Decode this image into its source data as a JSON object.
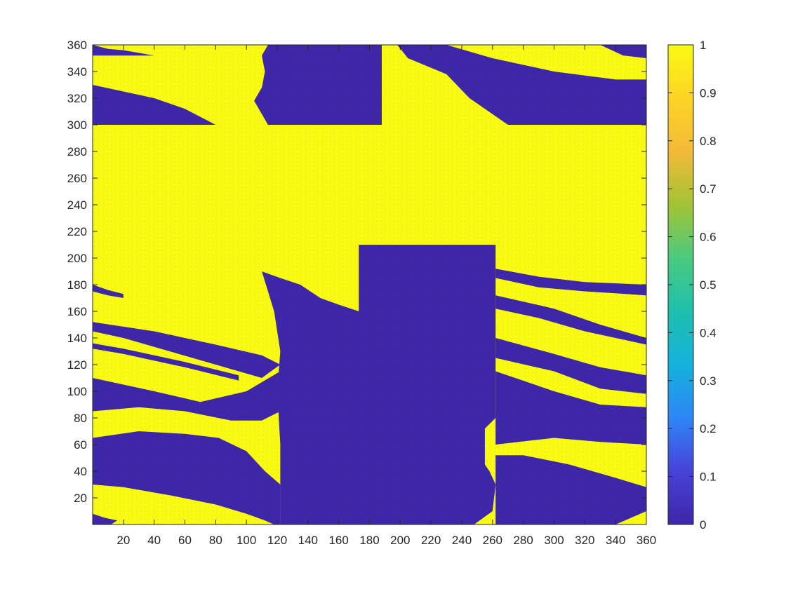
{
  "chart_data": {
    "type": "heatmap",
    "title": "",
    "xlabel": "",
    "ylabel": "",
    "xlim": [
      0,
      360
    ],
    "ylim": [
      0,
      360
    ],
    "grid": false,
    "colormap": "parula",
    "color_limits": [
      0,
      1
    ],
    "colors": {
      "low": "#3D26A8",
      "high": "#F9FA14",
      "parula_stops": [
        "#3E26A8",
        "#4742D8",
        "#2E86F6",
        "#14B2DC",
        "#1DBFAE",
        "#4BCA7F",
        "#A3C335",
        "#F2BA39",
        "#FDD425",
        "#F9FA14"
      ]
    },
    "xticks": [
      20,
      40,
      60,
      80,
      100,
      120,
      140,
      160,
      180,
      200,
      220,
      240,
      260,
      280,
      300,
      320,
      340,
      360
    ],
    "yticks": [
      20,
      40,
      60,
      80,
      100,
      120,
      140,
      160,
      180,
      200,
      220,
      240,
      260,
      280,
      300,
      320,
      340,
      360
    ],
    "colorbar": {
      "ticks": [
        0,
        0.1,
        0.2,
        0.3,
        0.4,
        0.5,
        0.6,
        0.7,
        0.8,
        0.9,
        1
      ],
      "tick_labels": [
        "0",
        "0.1",
        "0.2",
        "0.3",
        "0.4",
        "0.5",
        "0.6",
        "0.7",
        "0.8",
        "0.9",
        "1"
      ]
    },
    "background_value": 1,
    "regions_value_0": [
      [
        [
          0,
          0
        ],
        [
          12,
          0
        ],
        [
          16,
          3
        ],
        [
          8,
          5
        ],
        [
          0,
          8
        ]
      ],
      [
        [
          0,
          30
        ],
        [
          20,
          28
        ],
        [
          50,
          22
        ],
        [
          80,
          15
        ],
        [
          100,
          8
        ],
        [
          112,
          3
        ],
        [
          118,
          0
        ],
        [
          122,
          0
        ],
        [
          122,
          30
        ],
        [
          112,
          40
        ],
        [
          100,
          55
        ],
        [
          82,
          65
        ],
        [
          60,
          68
        ],
        [
          30,
          70
        ],
        [
          0,
          65
        ]
      ],
      [
        [
          0,
          85
        ],
        [
          30,
          88
        ],
        [
          60,
          85
        ],
        [
          90,
          78
        ],
        [
          110,
          78
        ],
        [
          122,
          85
        ],
        [
          122,
          115
        ],
        [
          100,
          100
        ],
        [
          70,
          92
        ],
        [
          40,
          100
        ],
        [
          0,
          110
        ]
      ],
      [
        [
          0,
          145
        ],
        [
          20,
          140
        ],
        [
          50,
          130
        ],
        [
          80,
          120
        ],
        [
          110,
          110
        ],
        [
          122,
          120
        ],
        [
          110,
          127
        ],
        [
          80,
          135
        ],
        [
          40,
          145
        ],
        [
          0,
          152
        ]
      ],
      [
        [
          0,
          132
        ],
        [
          20,
          128
        ],
        [
          60,
          118
        ],
        [
          95,
          108
        ],
        [
          95,
          112
        ],
        [
          60,
          122
        ],
        [
          20,
          132
        ],
        [
          0,
          136
        ]
      ],
      [
        [
          122,
          0
        ],
        [
          248,
          0
        ],
        [
          260,
          10
        ],
        [
          262,
          30
        ],
        [
          258,
          40
        ],
        [
          255,
          45
        ],
        [
          255,
          72
        ],
        [
          262,
          80
        ],
        [
          262,
          210
        ],
        [
          173,
          210
        ],
        [
          173,
          160
        ],
        [
          160,
          165
        ],
        [
          148,
          170
        ],
        [
          135,
          180
        ],
        [
          122,
          185
        ],
        [
          110,
          190
        ],
        [
          118,
          160
        ],
        [
          122,
          130
        ],
        [
          120,
          100
        ],
        [
          122,
          60
        ],
        [
          122,
          30
        ]
      ],
      [
        [
          262,
          0
        ],
        [
          340,
          0
        ],
        [
          360,
          10
        ],
        [
          360,
          28
        ],
        [
          340,
          35
        ],
        [
          310,
          45
        ],
        [
          280,
          52
        ],
        [
          262,
          52
        ]
      ],
      [
        [
          262,
          60
        ],
        [
          300,
          65
        ],
        [
          330,
          62
        ],
        [
          360,
          60
        ],
        [
          360,
          88
        ],
        [
          330,
          90
        ],
        [
          300,
          100
        ],
        [
          262,
          115
        ]
      ],
      [
        [
          262,
          125
        ],
        [
          300,
          115
        ],
        [
          330,
          102
        ],
        [
          360,
          98
        ],
        [
          360,
          112
        ],
        [
          330,
          118
        ],
        [
          300,
          128
        ],
        [
          262,
          140
        ]
      ],
      [
        [
          262,
          162
        ],
        [
          290,
          155
        ],
        [
          320,
          145
        ],
        [
          340,
          140
        ],
        [
          360,
          135
        ],
        [
          360,
          140
        ],
        [
          330,
          150
        ],
        [
          300,
          162
        ],
        [
          262,
          172
        ]
      ],
      [
        [
          262,
          185
        ],
        [
          290,
          178
        ],
        [
          320,
          175
        ],
        [
          360,
          172
        ],
        [
          360,
          180
        ],
        [
          320,
          182
        ],
        [
          290,
          186
        ],
        [
          262,
          192
        ]
      ],
      [
        [
          0,
          175
        ],
        [
          10,
          172
        ],
        [
          20,
          170
        ],
        [
          20,
          173
        ],
        [
          10,
          176
        ],
        [
          0,
          180
        ]
      ],
      [
        [
          0,
          300
        ],
        [
          30,
          300
        ],
        [
          60,
          300
        ],
        [
          80,
          300
        ],
        [
          60,
          312
        ],
        [
          40,
          320
        ],
        [
          20,
          325
        ],
        [
          0,
          330
        ]
      ],
      [
        [
          0,
          360
        ],
        [
          10,
          357
        ],
        [
          20,
          356
        ],
        [
          40,
          352
        ],
        [
          0,
          352
        ]
      ],
      [
        [
          114,
          300
        ],
        [
          188,
          300
        ],
        [
          188,
          360
        ],
        [
          114,
          360
        ],
        [
          110,
          352
        ],
        [
          112,
          340
        ],
        [
          110,
          328
        ],
        [
          105,
          318
        ]
      ],
      [
        [
          198,
          360
        ],
        [
          230,
          360
        ],
        [
          260,
          350
        ],
        [
          300,
          340
        ],
        [
          340,
          334
        ],
        [
          360,
          334
        ],
        [
          360,
          300
        ],
        [
          300,
          300
        ],
        [
          270,
          300
        ],
        [
          245,
          320
        ],
        [
          230,
          338
        ],
        [
          205,
          350
        ]
      ],
      [
        [
          330,
          360
        ],
        [
          360,
          360
        ],
        [
          360,
          350
        ],
        [
          345,
          352
        ]
      ]
    ]
  }
}
